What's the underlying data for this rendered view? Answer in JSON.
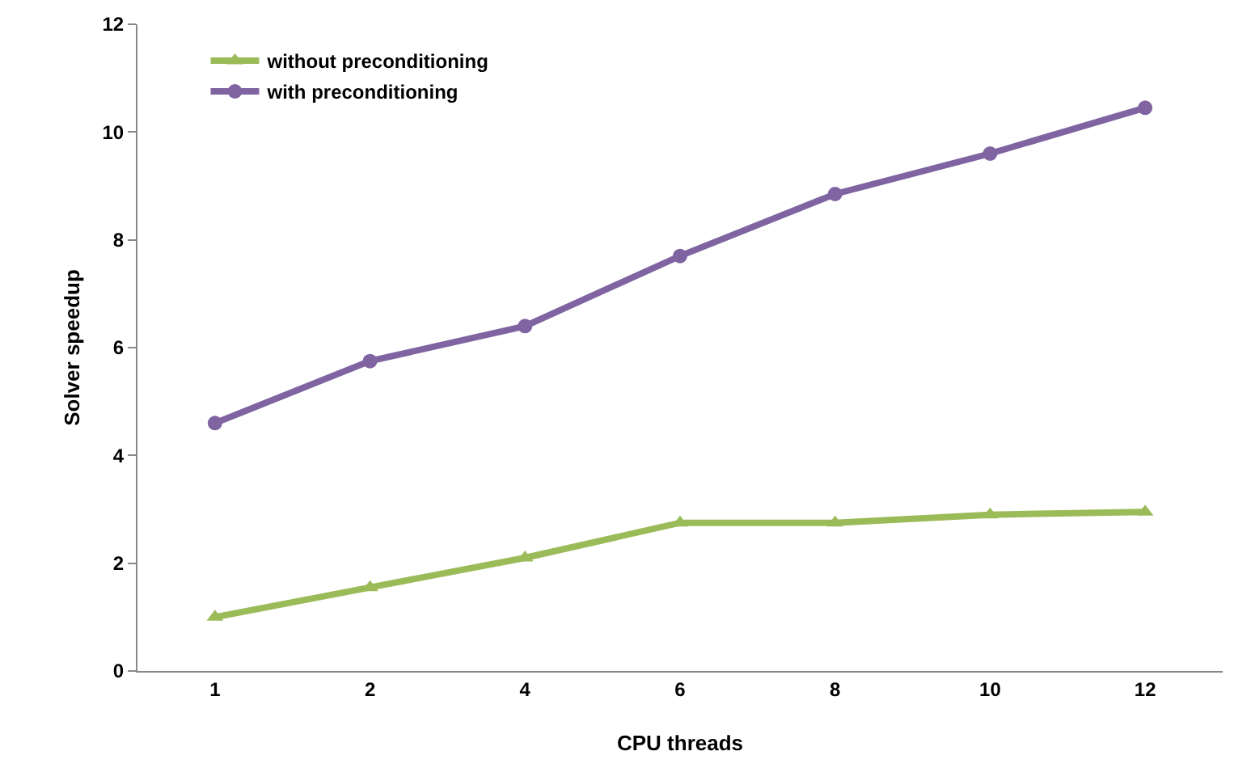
{
  "chart_data": {
    "type": "line",
    "xlabel": "CPU threads",
    "ylabel": "Solver speedup",
    "categories": [
      "1",
      "2",
      "4",
      "6",
      "8",
      "10",
      "12"
    ],
    "series": [
      {
        "name": "without preconditioning",
        "color": "#9bbb59",
        "marker": "triangle",
        "values": [
          1.0,
          1.55,
          2.1,
          2.75,
          2.75,
          2.9,
          2.95
        ]
      },
      {
        "name": "with preconditioning",
        "color": "#8064a2",
        "marker": "circle",
        "values": [
          4.6,
          5.75,
          6.4,
          7.7,
          8.85,
          9.6,
          10.45
        ]
      }
    ],
    "ylim": [
      0,
      12
    ],
    "yticks": [
      0,
      2,
      4,
      6,
      8,
      10,
      12
    ],
    "grid": false,
    "legend": "top left"
  }
}
